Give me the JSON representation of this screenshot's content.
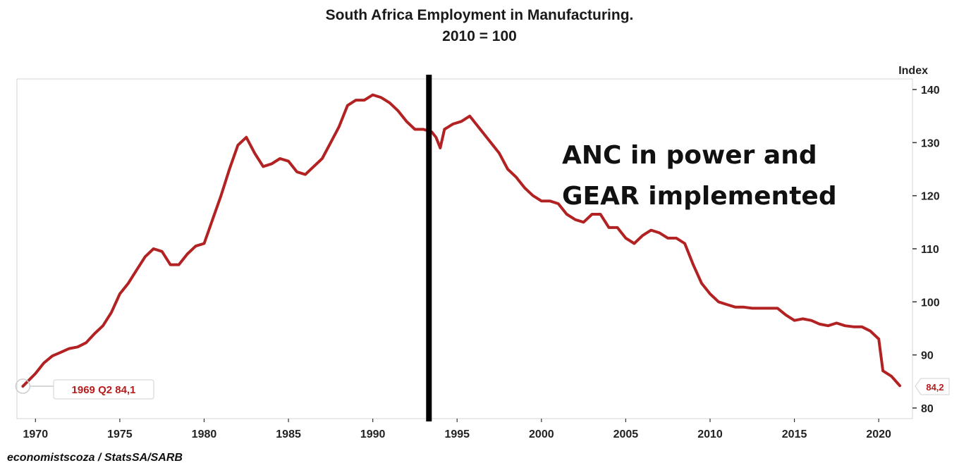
{
  "chart_data": {
    "type": "line",
    "title": "South Africa Employment in Manufacturing.",
    "subtitle": "2010 = 100",
    "ylabel": "Index",
    "xlim": [
      1969,
      2021.5
    ],
    "ylim": [
      78,
      142
    ],
    "x_ticks": [
      1970,
      1975,
      1980,
      1985,
      1990,
      1995,
      2000,
      2005,
      2010,
      2015,
      2020
    ],
    "y_ticks": [
      80,
      90,
      100,
      110,
      120,
      130,
      140
    ],
    "series": [
      {
        "color": "#b22222",
        "points": [
          [
            1969.25,
            84.1
          ],
          [
            1970.0,
            86.5
          ],
          [
            1970.5,
            88.5
          ],
          [
            1971.0,
            89.8
          ],
          [
            1971.5,
            90.5
          ],
          [
            1972.0,
            91.2
          ],
          [
            1972.5,
            91.5
          ],
          [
            1973.0,
            92.3
          ],
          [
            1973.5,
            94.0
          ],
          [
            1974.0,
            95.5
          ],
          [
            1974.5,
            98.0
          ],
          [
            1975.0,
            101.5
          ],
          [
            1975.5,
            103.5
          ],
          [
            1976.0,
            106.0
          ],
          [
            1976.5,
            108.5
          ],
          [
            1977.0,
            110.0
          ],
          [
            1977.5,
            109.5
          ],
          [
            1978.0,
            107.0
          ],
          [
            1978.5,
            107.0
          ],
          [
            1979.0,
            109.0
          ],
          [
            1979.5,
            110.5
          ],
          [
            1980.0,
            111.0
          ],
          [
            1980.5,
            115.5
          ],
          [
            1981.0,
            120.0
          ],
          [
            1981.5,
            125.0
          ],
          [
            1982.0,
            129.5
          ],
          [
            1982.5,
            131.0
          ],
          [
            1983.0,
            128.0
          ],
          [
            1983.5,
            125.5
          ],
          [
            1984.0,
            126.0
          ],
          [
            1984.5,
            127.0
          ],
          [
            1985.0,
            126.5
          ],
          [
            1985.5,
            124.5
          ],
          [
            1986.0,
            124.0
          ],
          [
            1986.5,
            125.5
          ],
          [
            1987.0,
            127.0
          ],
          [
            1987.5,
            130.0
          ],
          [
            1988.0,
            133.0
          ],
          [
            1988.5,
            137.0
          ],
          [
            1989.0,
            138.0
          ],
          [
            1989.5,
            138.0
          ],
          [
            1990.0,
            139.0
          ],
          [
            1990.5,
            138.5
          ],
          [
            1991.0,
            137.5
          ],
          [
            1991.5,
            136.0
          ],
          [
            1992.0,
            134.0
          ],
          [
            1992.5,
            132.5
          ],
          [
            1993.0,
            132.5
          ],
          [
            1993.5,
            132.0
          ],
          [
            1993.75,
            131.0
          ],
          [
            1994.0,
            129.0
          ],
          [
            1994.25,
            132.5
          ],
          [
            1994.75,
            133.5
          ],
          [
            1995.25,
            134.0
          ],
          [
            1995.75,
            135.0
          ],
          [
            1996.5,
            132.0
          ],
          [
            1997.0,
            130.0
          ],
          [
            1997.5,
            128.0
          ],
          [
            1998.0,
            125.0
          ],
          [
            1998.5,
            123.5
          ],
          [
            1999.0,
            121.5
          ],
          [
            1999.5,
            120.0
          ],
          [
            2000.0,
            119.0
          ],
          [
            2000.5,
            119.0
          ],
          [
            2001.0,
            118.5
          ],
          [
            2001.5,
            116.5
          ],
          [
            2002.0,
            115.5
          ],
          [
            2002.5,
            115.0
          ],
          [
            2003.0,
            116.5
          ],
          [
            2003.5,
            116.5
          ],
          [
            2004.0,
            114.0
          ],
          [
            2004.5,
            114.0
          ],
          [
            2005.0,
            112.0
          ],
          [
            2005.5,
            111.0
          ],
          [
            2006.0,
            112.5
          ],
          [
            2006.5,
            113.5
          ],
          [
            2007.0,
            113.0
          ],
          [
            2007.5,
            112.0
          ],
          [
            2008.0,
            112.0
          ],
          [
            2008.5,
            111.0
          ],
          [
            2009.0,
            107.0
          ],
          [
            2009.5,
            103.5
          ],
          [
            2010.0,
            101.5
          ],
          [
            2010.5,
            100.0
          ],
          [
            2011.0,
            99.5
          ],
          [
            2011.5,
            99.0
          ],
          [
            2012.0,
            99.0
          ],
          [
            2012.5,
            98.8
          ],
          [
            2013.0,
            98.8
          ],
          [
            2013.5,
            98.8
          ],
          [
            2014.0,
            98.8
          ],
          [
            2014.5,
            97.5
          ],
          [
            2015.0,
            96.5
          ],
          [
            2015.5,
            96.8
          ],
          [
            2016.0,
            96.5
          ],
          [
            2016.5,
            95.8
          ],
          [
            2017.0,
            95.5
          ],
          [
            2017.5,
            96.0
          ],
          [
            2018.0,
            95.5
          ],
          [
            2018.5,
            95.3
          ],
          [
            2019.0,
            95.3
          ],
          [
            2019.5,
            94.5
          ],
          [
            2020.0,
            93.0
          ],
          [
            2020.25,
            87.0
          ],
          [
            2020.75,
            86.0
          ],
          [
            2021.25,
            84.2
          ]
        ]
      }
    ],
    "start_callout": "1969 Q2 84,1",
    "end_callout": "84,2",
    "vertical_marker_x": 1993.33,
    "annotation_lines": [
      "ANC in power and",
      "GEAR implemented"
    ],
    "source": "economistscoza / StatsSA/SARB"
  }
}
